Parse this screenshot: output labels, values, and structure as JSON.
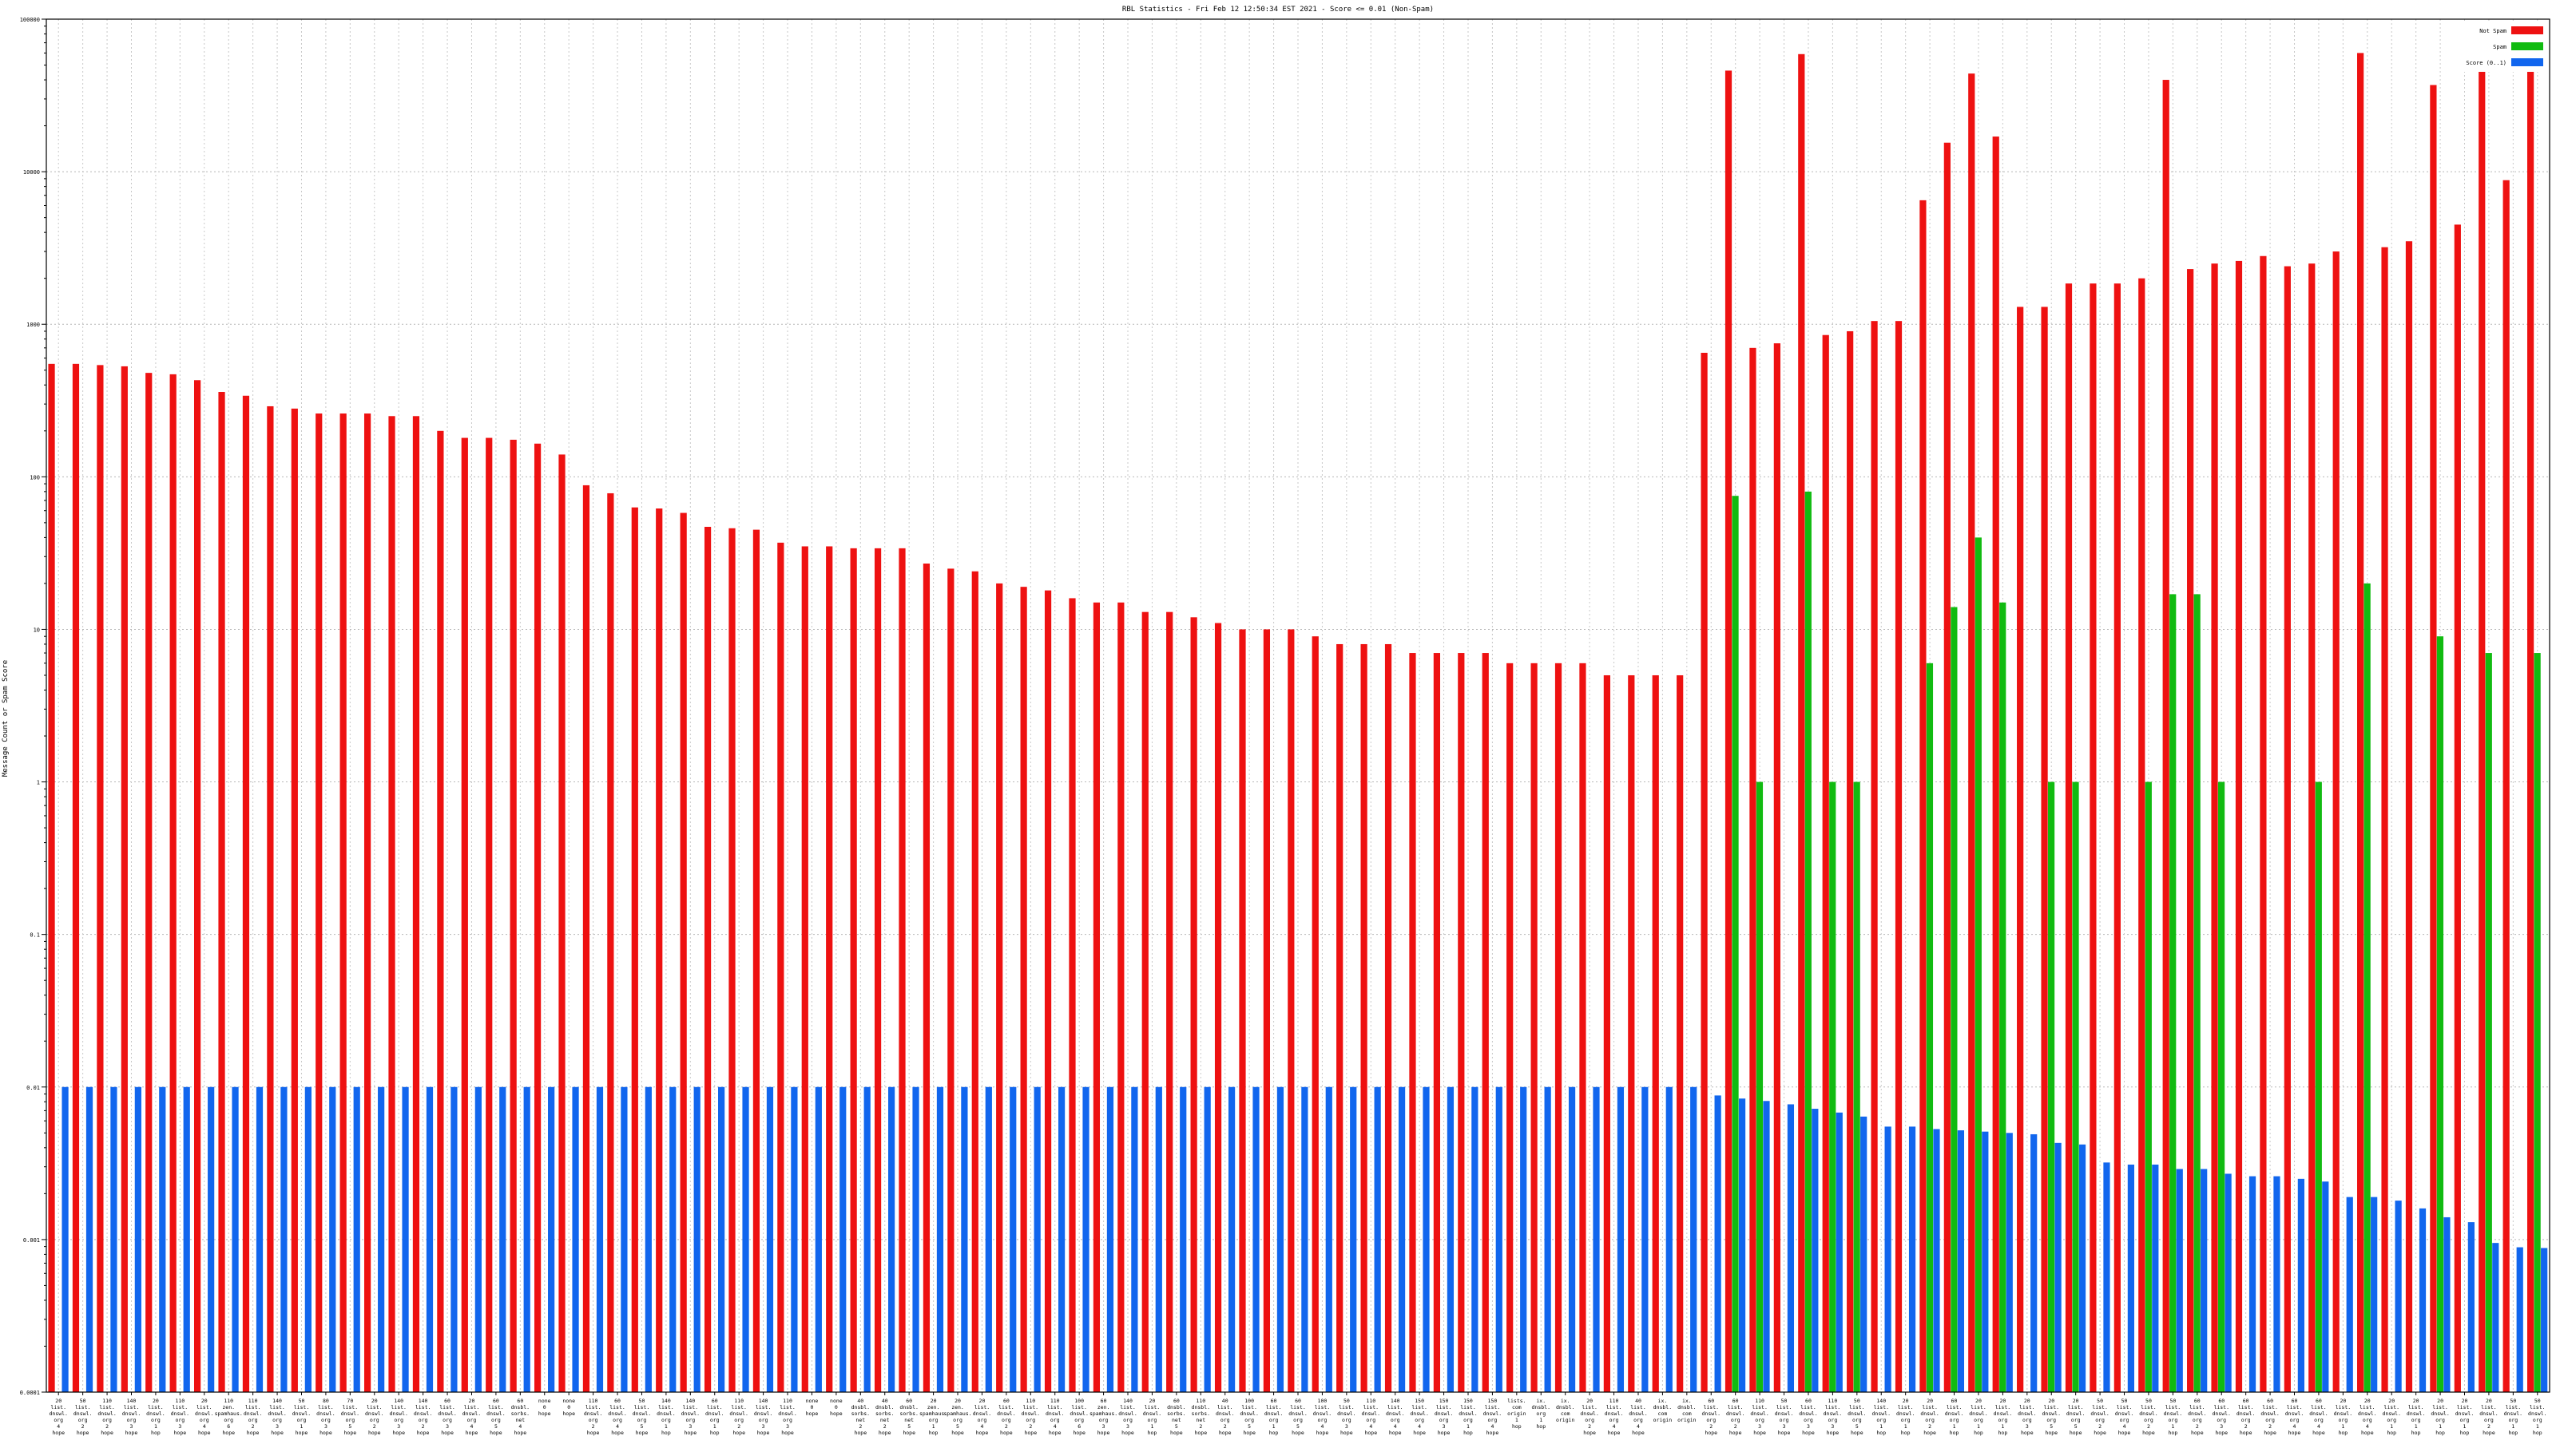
{
  "chart_data": {
    "type": "bar",
    "title": "RBL Statistics - Fri Feb 12 12:50:34 EST 2021 - Score <= 0.01 (Non-Spam)",
    "xlabel": "",
    "ylabel": "Message Count or Spam Score",
    "yscale": "log",
    "ylim": [
      0.0001,
      100000
    ],
    "y_ticks": [
      "0.0001",
      "0.001",
      "0.01",
      "0.1",
      "1",
      "10",
      "100",
      "1000",
      "10000",
      "100000"
    ],
    "grid": true,
    "legend_position": "top-right",
    "series": [
      {
        "name": "Not Spam",
        "color": "#ee1111",
        "values": [
          550,
          550,
          540,
          530,
          480,
          470,
          430,
          360,
          340,
          290,
          280,
          260,
          260,
          260,
          250,
          250,
          200,
          180,
          180,
          175,
          165,
          140,
          88,
          78,
          63,
          62,
          58,
          47,
          46,
          45,
          37,
          35,
          35,
          34,
          34,
          34,
          27,
          25,
          24,
          20,
          19,
          18,
          16,
          15,
          15,
          13,
          13,
          12,
          11,
          10,
          10,
          10,
          9,
          8,
          8,
          8,
          7,
          7,
          7,
          7,
          6,
          6,
          6,
          6,
          5,
          5,
          5,
          5,
          650,
          46000,
          700,
          750,
          59000,
          850,
          900,
          1050,
          1050,
          6500,
          15500,
          44000,
          17000,
          1300,
          1300,
          1850,
          1850,
          1850,
          2000,
          40000,
          2300,
          2500,
          2600,
          2800,
          2400,
          2500,
          3000,
          60000,
          3200,
          3500,
          37000,
          4500,
          51000,
          8800,
          60000
        ]
      },
      {
        "name": "Spam",
        "color": "#11bb11",
        "values": [
          null,
          null,
          null,
          null,
          null,
          null,
          null,
          null,
          null,
          null,
          null,
          null,
          null,
          null,
          null,
          null,
          null,
          null,
          null,
          null,
          null,
          null,
          null,
          null,
          null,
          null,
          null,
          null,
          null,
          null,
          null,
          null,
          null,
          null,
          null,
          null,
          null,
          null,
          null,
          null,
          null,
          null,
          null,
          null,
          null,
          null,
          null,
          null,
          null,
          null,
          null,
          null,
          null,
          null,
          null,
          null,
          null,
          null,
          null,
          null,
          null,
          null,
          null,
          null,
          null,
          null,
          null,
          null,
          null,
          75,
          1,
          null,
          80,
          1,
          1,
          null,
          null,
          6,
          14,
          40,
          15,
          null,
          1,
          1,
          null,
          null,
          1,
          17,
          17,
          1,
          null,
          null,
          null,
          1,
          null,
          20,
          null,
          null,
          9,
          null,
          7,
          null,
          7
        ]
      },
      {
        "name": "Score (0..1)",
        "color": "#1166ee",
        "values": [
          0.01,
          0.01,
          0.01,
          0.01,
          0.01,
          0.01,
          0.01,
          0.01,
          0.01,
          0.01,
          0.01,
          0.01,
          0.01,
          0.01,
          0.01,
          0.01,
          0.01,
          0.01,
          0.01,
          0.01,
          0.01,
          0.01,
          0.01,
          0.01,
          0.01,
          0.01,
          0.01,
          0.01,
          0.01,
          0.01,
          0.01,
          0.01,
          0.01,
          0.01,
          0.01,
          0.01,
          0.01,
          0.01,
          0.01,
          0.01,
          0.01,
          0.01,
          0.01,
          0.01,
          0.01,
          0.01,
          0.01,
          0.01,
          0.01,
          0.01,
          0.01,
          0.01,
          0.01,
          0.01,
          0.01,
          0.01,
          0.01,
          0.01,
          0.01,
          0.01,
          0.01,
          0.01,
          0.01,
          0.01,
          0.01,
          0.01,
          0.01,
          0.01,
          0.0088,
          0.0084,
          0.0081,
          0.0077,
          0.0072,
          0.0068,
          0.0064,
          0.0055,
          0.0055,
          0.0053,
          0.0052,
          0.0051,
          0.005,
          0.0049,
          0.0043,
          0.0042,
          0.0032,
          0.0031,
          0.0031,
          0.0029,
          0.0029,
          0.0027,
          0.0026,
          0.0026,
          0.0025,
          0.0024,
          0.0019,
          0.0019,
          0.0018,
          0.0016,
          0.0014,
          0.0013,
          0.00095,
          0.00089,
          0.00088
        ]
      }
    ],
    "categories": [
      "20 list. dnswl. org 4 hope",
      "50 list. dnswl. org 2 hope",
      "110 list. dnswl. org 2 hope",
      "140 list. dnswl. org 3 hope",
      "20 list. dnswl. org 1 hop",
      "110 list. dnswl. org 3 hope",
      "20 list. dnswl. org 4 hope",
      "110 zen. spamhaus. org 6 hope",
      "110 list. dnswl. org 2 hope",
      "140 list. dnswl. org 3 hope",
      "50 list. dnswl. org 1 hope",
      "80 list. dnswl. org 3 hope",
      "70 list. dnswl. org 5 hope",
      "20 list. dnswl. org 2 hope",
      "140 list. dnswl. org 3 hope",
      "140 list. dnswl. org 2 hope",
      "60 list. dnswl. org 3 hope",
      "20 list. dnswl. org 4 hope",
      "60 list. dnswl. org 5 hope",
      "60 dnsbl. sorbs. net 4 hope",
      "none 0 hope",
      "none 0 hope",
      "110 list. dnswl. org 2 hope",
      "60 list. dnswl. org 4 hope",
      "50 list. dnswl. org 5 hope",
      "140 list. dnswl. org 1 hop",
      "140 list. dnswl. org 3 hope",
      "60 list. dnswl. org 1 hop",
      "110 list. dnswl. org 2 hope",
      "140 list. dnswl. org 3 hope",
      "110 list. dnswl. org 3 hope",
      "none 0 hope",
      "none 0 hope",
      "40 dnsbl. sorbs. net 2 hope",
      "40 dnsbl. sorbs. net 2 hope",
      "60 dnsbl. sorbs. net 5 hope",
      "20 zen. spamhaus. org 1 hop",
      "20 zen. spamhaus. org 5 hope",
      "20 list. dnswl. org 4 hope",
      "60 list. dnswl. org 2 hope",
      "110 list. dnswl. org 2 hope",
      "110 list. dnswl. org 4 hope",
      "100 list. dnswl. org 6 hope",
      "60 zen. spamhaus. org 3 hope",
      "140 list. dnswl. org 3 hope",
      "20 list. dnswl. org 1 hop",
      "60 dnsbl. sorbs. net 5 hope",
      "110 dnsbl. sorbs. net 2 hope",
      "40 list. dnswl. org 2 hope",
      "100 list. dnswl. org 5 hope",
      "60 list. dnswl. org 1 hop",
      "60 list. dnswl. org 5 hope",
      "100 list. dnswl. org 4 hope",
      "50 list. dnswl. org 3 hope",
      "110 list. dnswl. org 4 hope",
      "140 list. dnswl. org 4 hope",
      "150 list. dnswl. org 4 hope",
      "150 list. dnswl. org 3 hope",
      "150 list. dnswl. org 1 hop",
      "150 list. dnswl. org 4 hope",
      "lists. com origin 1 hop",
      "ix. dnsbl. org 1 hop",
      "ix. dnsbl. com origin",
      "20 list. dnswl. org 2 hope",
      "110 list. dnswl. org 4 hope",
      "40 list. dnswl. org 4 hope",
      "ix. dnsbl. com origin",
      "ix. dnsbl. com origin",
      "60 list. dnswl. org 2 hope",
      "60 list. dnswl. org 2 hope",
      "110 list. dnswl. org 3 hope",
      "50 list. dnswl. org 3 hope",
      "60 list. dnswl. org 3 hope",
      "110 list. dnswl. org 3 hope",
      "50 list. dnswl. org 5 hope",
      "140 list. dnswl. org 1 hop",
      "20 list. dnswl. org 1 hop",
      "20 list. dnswl. org 2 hope",
      "60 list. dnswl. org 1 hop",
      "20 list. dnswl. org 1 hop",
      "20 list. dnswl. org 1 hop",
      "20 list. dnswl. org 3 hope",
      "20 list. dnswl. org 5 hope",
      "20 list. dnswl. org 5 hope",
      "50 list. dnswl. org 2 hope",
      "50 list. dnswl. org 4 hope",
      "50 list. dnswl. org 2 hope",
      "50 list. dnswl. org 1 hop",
      "60 list. dnswl. org 2 hope",
      "60 list. dnswl. org 3 hope",
      "60 list. dnswl. org 2 hope",
      "60 list. dnswl. org 2 hope",
      "60 list. dnswl. org 4 hope",
      "60 list. dnswl. org 4 hope",
      "20 list. dnswl. org 1 hop",
      "20 list. dnswl. org 4 hope",
      "20 list. dnswl. org 1 hop",
      "20 list. dnswl. org 1 hop",
      "20 list. dnswl. org 1 hop",
      "20 list. dnswl. org 1 hop",
      "20 list. dnswl. org 2 hope",
      "50 list. dnswl. org 1 hop",
      "50 list. dnswl. org 1 hop"
    ]
  }
}
